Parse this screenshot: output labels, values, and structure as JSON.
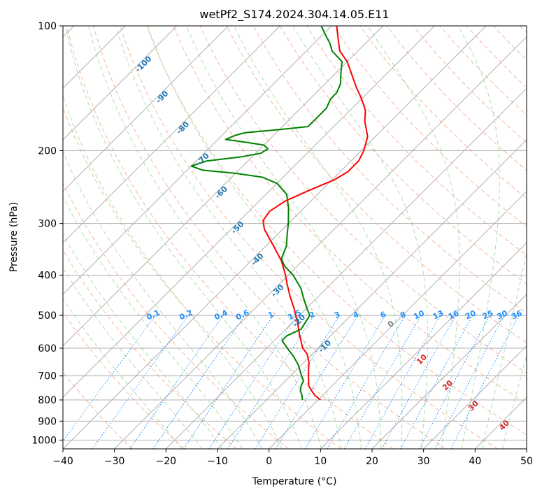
{
  "chart_data": {
    "type": "line",
    "subtype": "skew-t log-p diagram",
    "title": "wetPf2_S174.2024.304.14.05.E11",
    "xlabel": "Temperature (°C)",
    "ylabel": "Pressure (hPa)",
    "xlim": [
      -40,
      50
    ],
    "ylim": [
      1050,
      100
    ],
    "y_scale": "log",
    "grid": true,
    "x_ticks": [
      -40,
      -30,
      -20,
      -10,
      0,
      10,
      20,
      30,
      40,
      50
    ],
    "x_tick_labels": [
      "−40",
      "−30",
      "−20",
      "−10",
      "0",
      "10",
      "20",
      "30",
      "40",
      "50"
    ],
    "y_ticks": [
      1000,
      900,
      800,
      700,
      600,
      500,
      400,
      300,
      200,
      100
    ],
    "y_tick_labels": [
      "1000",
      "900",
      "800",
      "700",
      "600",
      "500",
      "400",
      "300",
      "200",
      "100"
    ],
    "series": [
      {
        "role": "temperature",
        "color": "#ff0000",
        "points": [
          {
            "p": 800,
            "t": 0.5
          },
          {
            "p": 780,
            "t": -1.5
          },
          {
            "p": 760,
            "t": -3
          },
          {
            "p": 740,
            "t": -4.5
          },
          {
            "p": 710,
            "t": -6
          },
          {
            "p": 680,
            "t": -7.5
          },
          {
            "p": 650,
            "t": -9
          },
          {
            "p": 620,
            "t": -11
          },
          {
            "p": 600,
            "t": -13
          },
          {
            "p": 560,
            "t": -16
          },
          {
            "p": 520,
            "t": -19
          },
          {
            "p": 480,
            "t": -22.5
          },
          {
            "p": 450,
            "t": -25.5
          },
          {
            "p": 420,
            "t": -28.5
          },
          {
            "p": 400,
            "t": -30.5
          },
          {
            "p": 370,
            "t": -34
          },
          {
            "p": 340,
            "t": -38.5
          },
          {
            "p": 310,
            "t": -43.5
          },
          {
            "p": 295,
            "t": -45.5
          },
          {
            "p": 280,
            "t": -46
          },
          {
            "p": 265,
            "t": -45
          },
          {
            "p": 250,
            "t": -42.5
          },
          {
            "p": 235,
            "t": -39.5
          },
          {
            "p": 225,
            "t": -38.5
          },
          {
            "p": 212,
            "t": -38.5
          },
          {
            "p": 200,
            "t": -39.5
          },
          {
            "p": 185,
            "t": -41.5
          },
          {
            "p": 170,
            "t": -45
          },
          {
            "p": 160,
            "t": -47
          },
          {
            "p": 150,
            "t": -50
          },
          {
            "p": 140,
            "t": -53.5
          },
          {
            "p": 130,
            "t": -57
          },
          {
            "p": 122,
            "t": -60
          },
          {
            "p": 115,
            "t": -63.5
          },
          {
            "p": 108,
            "t": -66
          },
          {
            "p": 100,
            "t": -69
          }
        ]
      },
      {
        "role": "dewpoint",
        "color": "#008000",
        "points": [
          {
            "p": 800,
            "t": -3
          },
          {
            "p": 780,
            "t": -4
          },
          {
            "p": 760,
            "t": -5.2
          },
          {
            "p": 740,
            "t": -6
          },
          {
            "p": 720,
            "t": -6.5
          },
          {
            "p": 690,
            "t": -8.5
          },
          {
            "p": 660,
            "t": -10.5
          },
          {
            "p": 630,
            "t": -13
          },
          {
            "p": 600,
            "t": -16
          },
          {
            "p": 575,
            "t": -18.5
          },
          {
            "p": 560,
            "t": -18.5
          },
          {
            "p": 540,
            "t": -17
          },
          {
            "p": 520,
            "t": -17.5
          },
          {
            "p": 500,
            "t": -18
          },
          {
            "p": 480,
            "t": -20
          },
          {
            "p": 460,
            "t": -22
          },
          {
            "p": 430,
            "t": -25
          },
          {
            "p": 400,
            "t": -29
          },
          {
            "p": 380,
            "t": -32.5
          },
          {
            "p": 365,
            "t": -34.5
          },
          {
            "p": 340,
            "t": -36
          },
          {
            "p": 320,
            "t": -38
          },
          {
            "p": 300,
            "t": -40
          },
          {
            "p": 275,
            "t": -43
          },
          {
            "p": 255,
            "t": -46
          },
          {
            "p": 240,
            "t": -50
          },
          {
            "p": 232,
            "t": -54
          },
          {
            "p": 227,
            "t": -60
          },
          {
            "p": 223,
            "t": -67
          },
          {
            "p": 218,
            "t": -70
          },
          {
            "p": 212,
            "t": -68
          },
          {
            "p": 207,
            "t": -62
          },
          {
            "p": 203,
            "t": -59
          },
          {
            "p": 198,
            "t": -58.5
          },
          {
            "p": 194,
            "t": -60
          },
          {
            "p": 191,
            "t": -64
          },
          {
            "p": 188,
            "t": -68.5
          },
          {
            "p": 184,
            "t": -67.5
          },
          {
            "p": 181,
            "t": -66
          },
          {
            "p": 178,
            "t": -60
          },
          {
            "p": 175,
            "t": -55
          },
          {
            "p": 172,
            "t": -55
          },
          {
            "p": 165,
            "t": -55
          },
          {
            "p": 158,
            "t": -55
          },
          {
            "p": 150,
            "t": -56
          },
          {
            "p": 145,
            "t": -56
          },
          {
            "p": 138,
            "t": -57
          },
          {
            "p": 130,
            "t": -59
          },
          {
            "p": 122,
            "t": -61
          },
          {
            "p": 115,
            "t": -65
          },
          {
            "p": 110,
            "t": -67
          },
          {
            "p": 106,
            "t": -69
          },
          {
            "p": 100,
            "t": -72
          }
        ]
      }
    ],
    "isotherm_labels": [
      "-100",
      "-90",
      "-80",
      "-70",
      "-60",
      "-50",
      "-40",
      "-30",
      "-20",
      "-10"
    ],
    "mixing_ratio_labels": [
      "0.1",
      "0.2",
      "0.4",
      "0.6",
      "1",
      "1.5",
      "2",
      "3",
      "4",
      "6",
      "8",
      "10",
      "13",
      "16",
      "20",
      "25",
      "30",
      "36"
    ],
    "moist_adiabat_labels": [
      "0",
      "10",
      "20",
      "30",
      "40"
    ],
    "colors": {
      "temperature": "#ff0000",
      "dewpoint": "#008000",
      "isotherm_label": "#1f77b4",
      "mixing_ratio": "#1e90ff",
      "moist_adiabat_label": "#d62728",
      "zero_label": "#808080",
      "dry_adiabat": "#f4a582",
      "moist_adiabat": "#a6d9a6",
      "isotherm": "#b0b0b0",
      "grid": "#b0b0b0"
    }
  }
}
